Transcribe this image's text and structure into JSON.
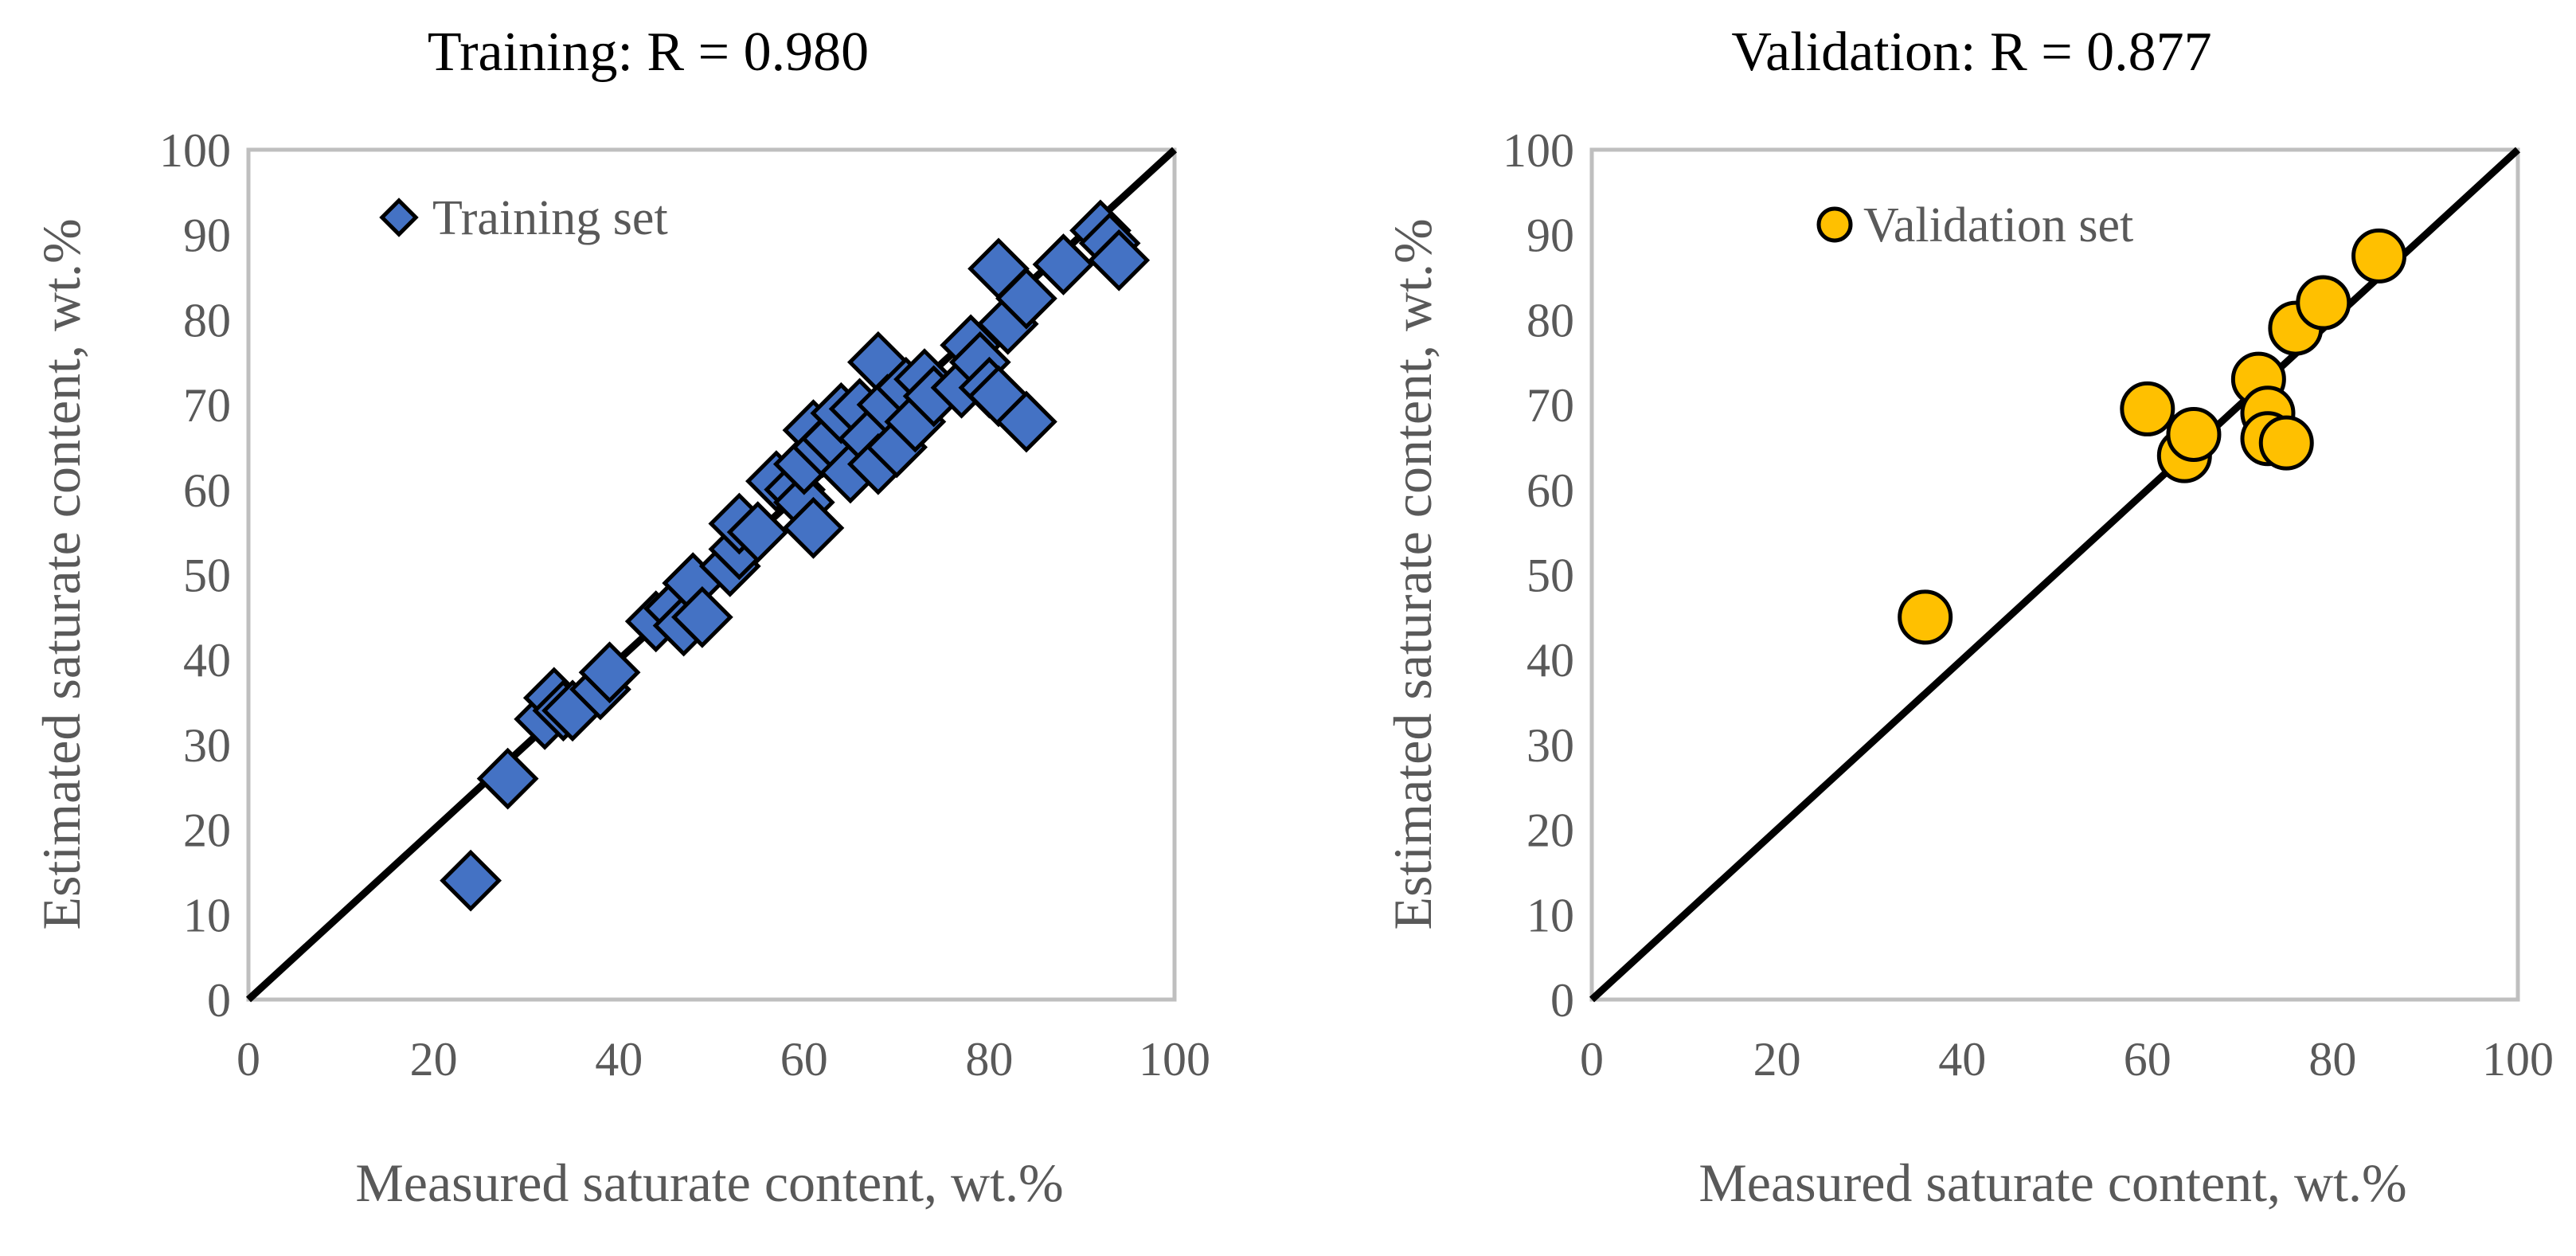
{
  "chart_data": [
    {
      "type": "scatter",
      "title": "Training: R = 0.980",
      "xlabel": "Measured saturate content, wt.%",
      "ylabel": "Estimated saturate content, wt.%",
      "xlim": [
        0,
        100
      ],
      "ylim": [
        0,
        100
      ],
      "xticks": [
        0,
        20,
        40,
        60,
        80,
        100
      ],
      "yticks": [
        0,
        10,
        20,
        30,
        40,
        50,
        60,
        70,
        80,
        90,
        100
      ],
      "grid": false,
      "legend": "top-left",
      "reference_line": {
        "name": "y = x",
        "x": [
          0,
          100
        ],
        "y": [
          0,
          100
        ],
        "color": "#000000"
      },
      "series": [
        {
          "name": "Training set",
          "marker": "diamond",
          "color": "#4472C4",
          "points": [
            {
              "x": 24,
              "y": 14
            },
            {
              "x": 28,
              "y": 26
            },
            {
              "x": 32,
              "y": 33
            },
            {
              "x": 33,
              "y": 35.5
            },
            {
              "x": 34,
              "y": 34
            },
            {
              "x": 35,
              "y": 34
            },
            {
              "x": 38,
              "y": 36.5
            },
            {
              "x": 39,
              "y": 38.5
            },
            {
              "x": 44,
              "y": 44.5
            },
            {
              "x": 46,
              "y": 46
            },
            {
              "x": 47,
              "y": 44
            },
            {
              "x": 48,
              "y": 49
            },
            {
              "x": 49,
              "y": 45
            },
            {
              "x": 52,
              "y": 51
            },
            {
              "x": 53,
              "y": 53
            },
            {
              "x": 53,
              "y": 56
            },
            {
              "x": 55,
              "y": 55
            },
            {
              "x": 57,
              "y": 61
            },
            {
              "x": 59,
              "y": 60
            },
            {
              "x": 60,
              "y": 58.5
            },
            {
              "x": 60,
              "y": 63
            },
            {
              "x": 61,
              "y": 55.5
            },
            {
              "x": 61,
              "y": 67
            },
            {
              "x": 62,
              "y": 65
            },
            {
              "x": 63,
              "y": 66
            },
            {
              "x": 64,
              "y": 69
            },
            {
              "x": 65,
              "y": 62
            },
            {
              "x": 66,
              "y": 69.5
            },
            {
              "x": 67,
              "y": 66
            },
            {
              "x": 68,
              "y": 63
            },
            {
              "x": 68,
              "y": 75
            },
            {
              "x": 69,
              "y": 70
            },
            {
              "x": 70,
              "y": 65
            },
            {
              "x": 71,
              "y": 72
            },
            {
              "x": 72,
              "y": 68
            },
            {
              "x": 73,
              "y": 73
            },
            {
              "x": 74,
              "y": 71
            },
            {
              "x": 77,
              "y": 72
            },
            {
              "x": 78,
              "y": 77
            },
            {
              "x": 79,
              "y": 75
            },
            {
              "x": 80,
              "y": 72
            },
            {
              "x": 81,
              "y": 71
            },
            {
              "x": 81,
              "y": 86
            },
            {
              "x": 82,
              "y": 79.5
            },
            {
              "x": 84,
              "y": 68
            },
            {
              "x": 84,
              "y": 82.5
            },
            {
              "x": 88,
              "y": 86.5
            },
            {
              "x": 92,
              "y": 90.5
            },
            {
              "x": 93,
              "y": 89
            },
            {
              "x": 94,
              "y": 87
            }
          ]
        }
      ]
    },
    {
      "type": "scatter",
      "title": "Validation: R = 0.877",
      "xlabel": "Measured saturate content, wt.%",
      "ylabel": "Estimated saturate content, wt.%",
      "xlim": [
        0,
        100
      ],
      "ylim": [
        0,
        100
      ],
      "xticks": [
        0,
        20,
        40,
        60,
        80,
        100
      ],
      "yticks": [
        0,
        10,
        20,
        30,
        40,
        50,
        60,
        70,
        80,
        90,
        100
      ],
      "grid": false,
      "legend": "top-center",
      "reference_line": {
        "name": "y = x",
        "x": [
          0,
          100
        ],
        "y": [
          0,
          100
        ],
        "color": "#000000"
      },
      "series": [
        {
          "name": "Validation set",
          "marker": "circle",
          "color": "#FFC000",
          "points": [
            {
              "x": 36,
              "y": 45
            },
            {
              "x": 60,
              "y": 69.5
            },
            {
              "x": 64,
              "y": 64
            },
            {
              "x": 65,
              "y": 66.5
            },
            {
              "x": 72,
              "y": 73
            },
            {
              "x": 73,
              "y": 69
            },
            {
              "x": 73,
              "y": 66
            },
            {
              "x": 75,
              "y": 65.5
            },
            {
              "x": 76,
              "y": 79
            },
            {
              "x": 79,
              "y": 82
            },
            {
              "x": 85,
              "y": 87.5
            }
          ]
        }
      ]
    }
  ]
}
